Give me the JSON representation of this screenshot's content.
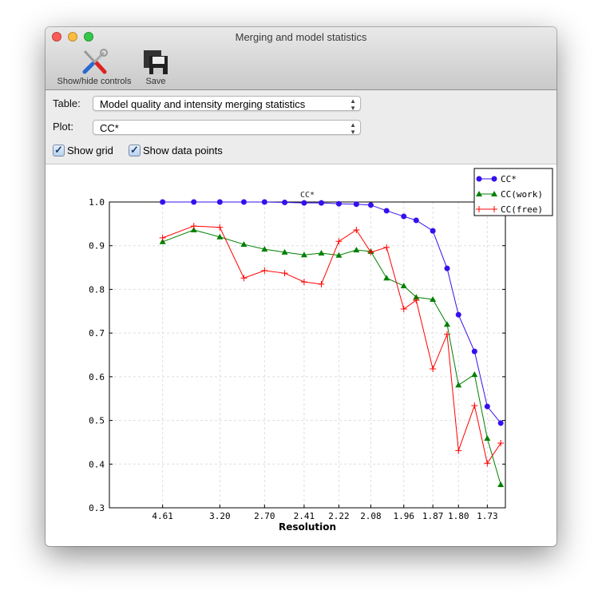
{
  "window": {
    "title": "Merging and model statistics"
  },
  "toolbar": {
    "show_hide_label": "Show/hide controls",
    "save_label": "Save"
  },
  "controls": {
    "table_label": "Table:",
    "table_value": "Model quality and intensity merging statistics",
    "plot_label": "Plot:",
    "plot_value": "CC*",
    "show_grid_label": "Show grid",
    "show_grid": true,
    "show_points_label": "Show data points",
    "show_points": true
  },
  "chart_data": {
    "type": "line",
    "title": "CC*",
    "xlabel": "Resolution",
    "ylabel": "",
    "x_scale": "1/d^2",
    "xlim_resolution": [
      null,
      1.69
    ],
    "ylim": [
      0.3,
      1.0
    ],
    "grid": true,
    "legend": "top-right",
    "x_tick_labels": [
      "4.61",
      "3.20",
      "2.70",
      "2.41",
      "2.22",
      "2.08",
      "1.96",
      "1.87",
      "1.80",
      "1.73"
    ],
    "y_ticks": [
      0.3,
      0.4,
      0.5,
      0.6,
      0.7,
      0.8,
      0.9,
      1.0
    ],
    "x": [
      4.61,
      3.66,
      3.2,
      2.9,
      2.7,
      2.54,
      2.41,
      2.31,
      2.22,
      2.14,
      2.08,
      2.02,
      1.96,
      1.92,
      1.87,
      1.83,
      1.8,
      1.76,
      1.73,
      1.7
    ],
    "series": [
      {
        "name": "CC*",
        "color": "#3311ee",
        "marker": "circle",
        "values": [
          1.0,
          1.0,
          1.0,
          1.0,
          1.0,
          0.999,
          0.998,
          0.998,
          0.996,
          0.995,
          0.993,
          0.98,
          0.967,
          0.958,
          0.934,
          0.848,
          0.742,
          0.658,
          0.532,
          0.494
        ]
      },
      {
        "name": "CC(work)",
        "color": "#008000",
        "marker": "triangle",
        "values": [
          0.909,
          0.936,
          0.92,
          0.903,
          0.892,
          0.885,
          0.879,
          0.883,
          0.878,
          0.89,
          0.887,
          0.826,
          0.808,
          0.782,
          0.777,
          0.72,
          0.581,
          0.605,
          0.459,
          0.353
        ]
      },
      {
        "name": "CC(free)",
        "color": "#ff0000",
        "marker": "plus",
        "values": [
          0.918,
          0.945,
          0.942,
          0.826,
          0.843,
          0.837,
          0.817,
          0.812,
          0.91,
          0.936,
          0.885,
          0.896,
          0.755,
          0.775,
          0.618,
          0.697,
          0.431,
          0.534,
          0.402,
          0.448
        ]
      }
    ]
  }
}
